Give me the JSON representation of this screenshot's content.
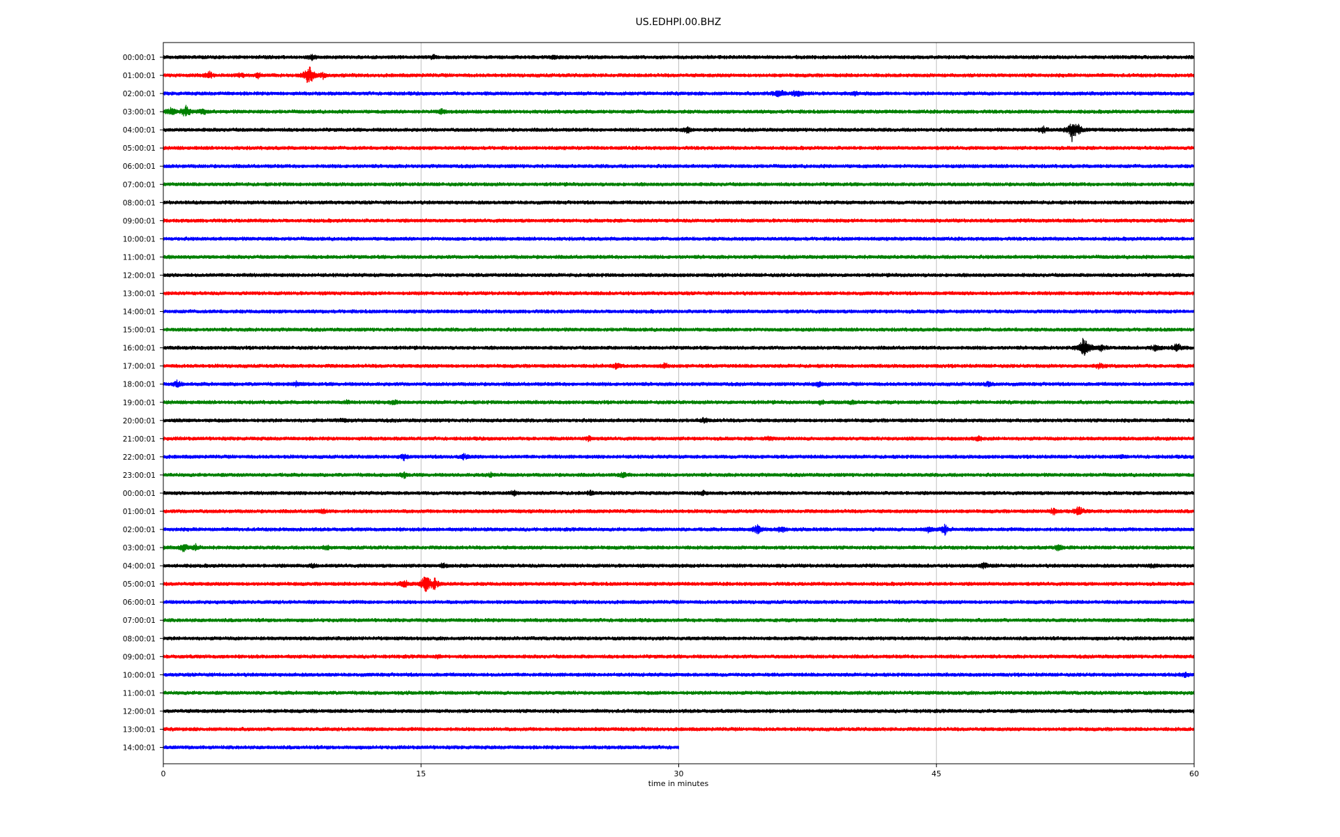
{
  "chart_data": {
    "type": "line",
    "title": "US.EDHPI.00.BHZ",
    "xlabel": "time in minutes",
    "ylabel": "",
    "xlim": [
      0,
      60
    ],
    "x_ticks": [
      0,
      15,
      30,
      45,
      60
    ],
    "x_tick_labels": [
      "0",
      "15",
      "30",
      "45",
      "60"
    ],
    "grid": "vertical lines at 15-minute ticks",
    "trace_colors": [
      "#000000",
      "#ff0000",
      "#0000ff",
      "#008000"
    ],
    "row_labels": [
      "00:00:01",
      "01:00:01",
      "02:00:01",
      "03:00:01",
      "04:00:01",
      "05:00:01",
      "06:00:01",
      "07:00:01",
      "08:00:01",
      "09:00:01",
      "10:00:01",
      "11:00:01",
      "12:00:01",
      "13:00:01",
      "14:00:01",
      "15:00:01",
      "16:00:01",
      "17:00:01",
      "18:00:01",
      "19:00:01",
      "20:00:01",
      "21:00:01",
      "22:00:01",
      "23:00:01",
      "00:00:01",
      "01:00:01",
      "02:00:01",
      "03:00:01",
      "04:00:01",
      "05:00:01",
      "06:00:01",
      "07:00:01",
      "08:00:01",
      "09:00:01",
      "10:00:01",
      "11:00:01",
      "12:00:01",
      "13:00:01",
      "14:00:01"
    ],
    "trace_end_minutes": [
      60,
      60,
      60,
      60,
      60,
      60,
      60,
      60,
      60,
      60,
      60,
      60,
      60,
      60,
      60,
      60,
      60,
      60,
      60,
      60,
      60,
      60,
      60,
      60,
      60,
      60,
      60,
      60,
      60,
      60,
      60,
      60,
      60,
      60,
      60,
      60,
      60,
      60,
      30
    ],
    "events": [
      {
        "row": 0,
        "minute": 8.6,
        "amp": 0.4
      },
      {
        "row": 0,
        "minute": 15.7,
        "amp": 0.3
      },
      {
        "row": 0,
        "minute": 22.8,
        "amp": 0.3
      },
      {
        "row": 1,
        "minute": 2.7,
        "amp": 0.5
      },
      {
        "row": 1,
        "minute": 4.5,
        "amp": 0.35
      },
      {
        "row": 1,
        "minute": 5.5,
        "amp": 0.35
      },
      {
        "row": 1,
        "minute": 8.5,
        "amp": 1.3
      },
      {
        "row": 1,
        "minute": 9.3,
        "amp": 0.4
      },
      {
        "row": 2,
        "minute": 35.8,
        "amp": 0.7
      },
      {
        "row": 2,
        "minute": 36.9,
        "amp": 0.6
      },
      {
        "row": 2,
        "minute": 40.3,
        "amp": 0.3
      },
      {
        "row": 3,
        "minute": 0.5,
        "amp": 0.6
      },
      {
        "row": 3,
        "minute": 1.3,
        "amp": 0.8
      },
      {
        "row": 3,
        "minute": 2.3,
        "amp": 0.45
      },
      {
        "row": 3,
        "minute": 16.2,
        "amp": 0.35
      },
      {
        "row": 4,
        "minute": 30.5,
        "amp": 0.45
      },
      {
        "row": 4,
        "minute": 51.2,
        "amp": 0.5
      },
      {
        "row": 4,
        "minute": 52.9,
        "amp": 1.3
      },
      {
        "row": 4,
        "minute": 53.3,
        "amp": 0.7
      },
      {
        "row": 16,
        "minute": 53.6,
        "amp": 1.5
      },
      {
        "row": 16,
        "minute": 54.6,
        "amp": 0.5
      },
      {
        "row": 16,
        "minute": 57.8,
        "amp": 0.5
      },
      {
        "row": 16,
        "minute": 59.0,
        "amp": 0.6
      },
      {
        "row": 17,
        "minute": 26.4,
        "amp": 0.4
      },
      {
        "row": 17,
        "minute": 29.2,
        "amp": 0.35
      },
      {
        "row": 17,
        "minute": 54.5,
        "amp": 0.4
      },
      {
        "row": 18,
        "minute": 0.8,
        "amp": 0.5
      },
      {
        "row": 18,
        "minute": 7.8,
        "amp": 0.4
      },
      {
        "row": 18,
        "minute": 38.1,
        "amp": 0.4
      },
      {
        "row": 18,
        "minute": 48.0,
        "amp": 0.35
      },
      {
        "row": 19,
        "minute": 10.7,
        "amp": 0.3
      },
      {
        "row": 19,
        "minute": 13.4,
        "amp": 0.35
      },
      {
        "row": 19,
        "minute": 38.3,
        "amp": 0.3
      },
      {
        "row": 19,
        "minute": 40.1,
        "amp": 0.3
      },
      {
        "row": 20,
        "minute": 10.5,
        "amp": 0.3
      },
      {
        "row": 20,
        "minute": 31.5,
        "amp": 0.35
      },
      {
        "row": 21,
        "minute": 24.8,
        "amp": 0.35
      },
      {
        "row": 21,
        "minute": 35.3,
        "amp": 0.3
      },
      {
        "row": 21,
        "minute": 47.4,
        "amp": 0.45
      },
      {
        "row": 22,
        "minute": 14.0,
        "amp": 0.4
      },
      {
        "row": 22,
        "minute": 17.5,
        "amp": 0.4
      },
      {
        "row": 22,
        "minute": 55.8,
        "amp": 0.3
      },
      {
        "row": 23,
        "minute": 14.0,
        "amp": 0.35
      },
      {
        "row": 23,
        "minute": 19.1,
        "amp": 0.3
      },
      {
        "row": 23,
        "minute": 26.8,
        "amp": 0.4
      },
      {
        "row": 24,
        "minute": 20.4,
        "amp": 0.3
      },
      {
        "row": 24,
        "minute": 24.9,
        "amp": 0.35
      },
      {
        "row": 24,
        "minute": 31.4,
        "amp": 0.3
      },
      {
        "row": 25,
        "minute": 9.3,
        "amp": 0.3
      },
      {
        "row": 25,
        "minute": 51.8,
        "amp": 0.5
      },
      {
        "row": 25,
        "minute": 53.3,
        "amp": 0.7
      },
      {
        "row": 26,
        "minute": 34.6,
        "amp": 0.7
      },
      {
        "row": 26,
        "minute": 36.0,
        "amp": 0.45
      },
      {
        "row": 26,
        "minute": 44.6,
        "amp": 0.5
      },
      {
        "row": 26,
        "minute": 45.5,
        "amp": 0.65
      },
      {
        "row": 27,
        "minute": 1.2,
        "amp": 0.6
      },
      {
        "row": 27,
        "minute": 1.9,
        "amp": 0.4
      },
      {
        "row": 27,
        "minute": 9.5,
        "amp": 0.3
      },
      {
        "row": 27,
        "minute": 52.1,
        "amp": 0.45
      },
      {
        "row": 28,
        "minute": 8.7,
        "amp": 0.3
      },
      {
        "row": 28,
        "minute": 16.3,
        "amp": 0.3
      },
      {
        "row": 28,
        "minute": 47.8,
        "amp": 0.45
      },
      {
        "row": 28,
        "minute": 57.5,
        "amp": 0.3
      },
      {
        "row": 29,
        "minute": 14.0,
        "amp": 0.55
      },
      {
        "row": 29,
        "minute": 15.3,
        "amp": 1.5
      },
      {
        "row": 29,
        "minute": 15.8,
        "amp": 0.8
      },
      {
        "row": 30,
        "minute": 4.0,
        "amp": 0.25
      },
      {
        "row": 33,
        "minute": 16.0,
        "amp": 0.25
      },
      {
        "row": 34,
        "minute": 59.5,
        "amp": 0.3
      }
    ]
  }
}
